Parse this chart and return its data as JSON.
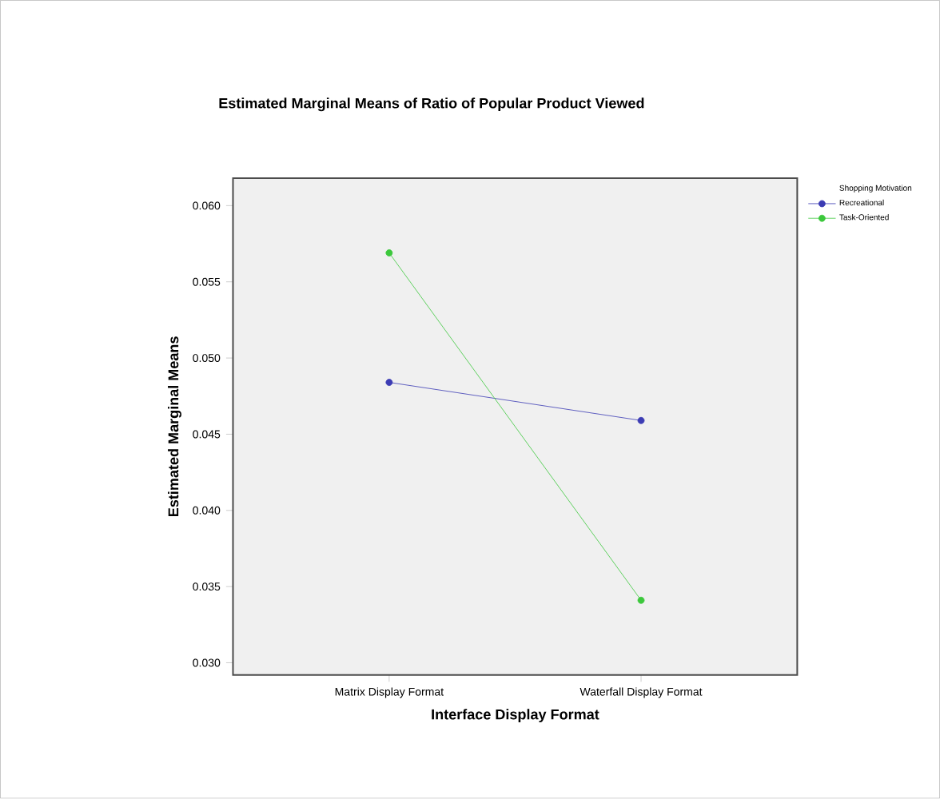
{
  "chart_data": {
    "type": "line",
    "title": "Estimated Marginal Means of Ratio of Popular Product Viewed",
    "xlabel": "Interface Display Format",
    "ylabel": "Estimated Marginal Means",
    "legend_title": "Shopping Motivation",
    "categories": [
      "Matrix Display Format",
      "Waterfall Display Format"
    ],
    "series": [
      {
        "name": "Recreational",
        "color": "#3c3cb4",
        "values": [
          0.0484,
          0.0459
        ]
      },
      {
        "name": "Task-Oriented",
        "color": "#3cc83c",
        "values": [
          0.0569,
          0.0341
        ]
      }
    ],
    "ylim": [
      0.0292,
      0.0618
    ],
    "yticks": [
      {
        "value": 0.03,
        "label": "0.030"
      },
      {
        "value": 0.035,
        "label": "0.035"
      },
      {
        "value": 0.04,
        "label": "0.040"
      },
      {
        "value": 0.045,
        "label": "0.045"
      },
      {
        "value": 0.05,
        "label": "0.050"
      },
      {
        "value": 0.055,
        "label": "0.055"
      },
      {
        "value": 0.06,
        "label": "0.060"
      }
    ],
    "legend": "right",
    "marker": "circle",
    "grid": false
  }
}
